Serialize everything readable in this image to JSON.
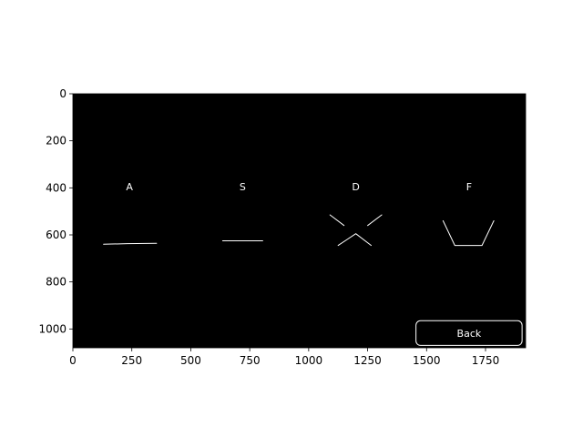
{
  "plot": {
    "x_axis": {
      "range": [
        0,
        1920
      ],
      "ticks": [
        {
          "value": 0,
          "label": "0"
        },
        {
          "value": 250,
          "label": "250"
        },
        {
          "value": 500,
          "label": "500"
        },
        {
          "value": 750,
          "label": "750"
        },
        {
          "value": 1000,
          "label": "1000"
        },
        {
          "value": 1250,
          "label": "1250"
        },
        {
          "value": 1500,
          "label": "1500"
        },
        {
          "value": 1750,
          "label": "1750"
        }
      ]
    },
    "y_axis": {
      "range": [
        1080,
        0
      ],
      "inverted": true,
      "ticks": [
        {
          "value": 0,
          "label": "0"
        },
        {
          "value": 200,
          "label": "200"
        },
        {
          "value": 400,
          "label": "400"
        },
        {
          "value": 600,
          "label": "600"
        },
        {
          "value": 800,
          "label": "800"
        },
        {
          "value": 1000,
          "label": "1000"
        }
      ]
    },
    "background_color": "#000000",
    "foreground_color": "#ffffff"
  },
  "keys": [
    {
      "label": "A",
      "label_pos": [
        240,
        395
      ],
      "strokes": [
        [
          [
            130,
            640
          ],
          [
            230,
            637
          ],
          [
            355,
            636
          ]
        ]
      ]
    },
    {
      "label": "S",
      "label_pos": [
        720,
        395
      ],
      "strokes": [
        [
          [
            635,
            625
          ],
          [
            805,
            625
          ]
        ]
      ]
    },
    {
      "label": "D",
      "label_pos": [
        1200,
        395
      ],
      "strokes": [
        [
          [
            1090,
            515
          ],
          [
            1150,
            560
          ]
        ],
        [
          [
            1250,
            560
          ],
          [
            1310,
            515
          ]
        ],
        [
          [
            1125,
            645
          ],
          [
            1200,
            595
          ],
          [
            1265,
            645
          ]
        ]
      ]
    },
    {
      "label": "F",
      "label_pos": [
        1680,
        395
      ],
      "strokes": [
        [
          [
            1570,
            540
          ],
          [
            1620,
            645
          ],
          [
            1735,
            645
          ],
          [
            1785,
            540
          ]
        ]
      ]
    }
  ],
  "back_button": {
    "label": "Back",
    "x0": 1455,
    "y0": 965,
    "x1": 1905,
    "y1": 1070
  }
}
